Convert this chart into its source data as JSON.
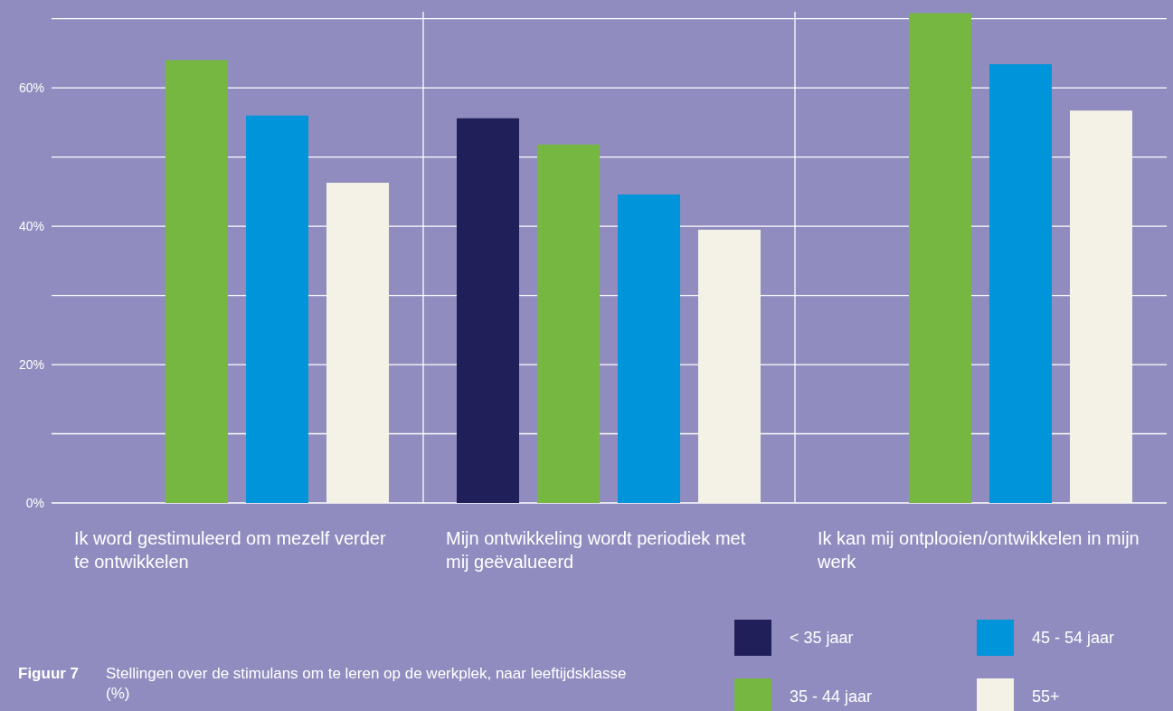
{
  "chart_data": {
    "type": "bar",
    "title": "Figuur 7",
    "subtitle": "Stellingen over de stimulans om te leren op de werkplek, naar leeftijdsklasse (%)",
    "categories": [
      "Ik word gestimuleerd om mezelf verder te ontwikkelen",
      "Mijn ontwikkeling wordt periodiek met mij geëvalueerd",
      "Ik kan mij ontplooien/ontwikkelen in mijn werk"
    ],
    "series": [
      {
        "name": "< 35 jaar",
        "color": "#201f5a",
        "values": [
          null,
          55.6,
          null
        ]
      },
      {
        "name": "35 - 44 jaar",
        "color": "#76b742",
        "values": [
          64,
          51.8,
          70.8
        ]
      },
      {
        "name": "45 - 54 jaar",
        "color": "#0094da",
        "values": [
          56,
          44.6,
          63.4
        ]
      },
      {
        "name": "55+",
        "color": "#f4f2e6",
        "values": [
          46.3,
          39.5,
          56.7
        ]
      }
    ],
    "ylim": [
      0,
      71
    ],
    "yticks": [
      {
        "value": 0,
        "label": "0%"
      },
      {
        "value": 10,
        "label": null
      },
      {
        "value": 20,
        "label": "20%"
      },
      {
        "value": 30,
        "label": null
      },
      {
        "value": 40,
        "label": "40%"
      },
      {
        "value": 50,
        "label": null
      },
      {
        "value": 60,
        "label": "60%"
      },
      {
        "value": 70,
        "label": null
      }
    ],
    "grid": true,
    "legend": "bottom right"
  }
}
